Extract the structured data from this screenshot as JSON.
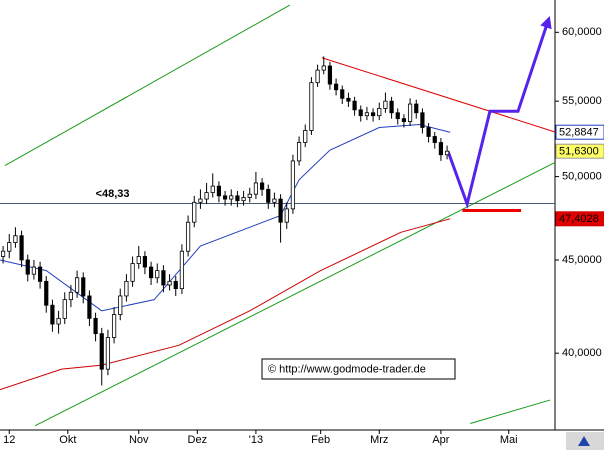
{
  "chart_data": {
    "type": "candlestick",
    "log": true,
    "xlim": [
      0,
      180
    ],
    "ylim": [
      36.3,
      62.5
    ],
    "yticks": [
      {
        "value": 40,
        "label": "40,0000"
      },
      {
        "value": 45,
        "label": "45,0000"
      },
      {
        "value": 50,
        "label": "50,0000"
      },
      {
        "value": 55,
        "label": "55,0000"
      },
      {
        "value": 60,
        "label": "60,0000"
      }
    ],
    "xticks": [
      {
        "value": 3,
        "label": "12"
      },
      {
        "value": 22,
        "label": "Okt"
      },
      {
        "value": 45,
        "label": "Nov"
      },
      {
        "value": 64,
        "label": "Dez"
      },
      {
        "value": 83,
        "label": "'13"
      },
      {
        "value": 104,
        "label": "Feb"
      },
      {
        "value": 123,
        "label": "Mrz"
      },
      {
        "value": 143,
        "label": "Apr"
      },
      {
        "value": 165,
        "label": "Mai"
      }
    ],
    "up_color": "#ffffff",
    "down_color": "#000000",
    "x": [
      1,
      3,
      5,
      7,
      9,
      11,
      13,
      15,
      17,
      19,
      21,
      23,
      25,
      27,
      29,
      31,
      33,
      35,
      37,
      39,
      41,
      43,
      45,
      47,
      49,
      51,
      53,
      55,
      57,
      59,
      61,
      63,
      65,
      67,
      69,
      71,
      73,
      75,
      77,
      79,
      81,
      83,
      85,
      87,
      89,
      91,
      93,
      95,
      97,
      99,
      101,
      103,
      105,
      107,
      109,
      111,
      113,
      115,
      117,
      119,
      121,
      123,
      125,
      127,
      129,
      131,
      133,
      135,
      137,
      139,
      141,
      143,
      145
    ],
    "candles": [
      [
        45.2,
        45.8,
        44.8,
        45.5
      ],
      [
        45.5,
        46.5,
        45.1,
        46.0
      ],
      [
        46.0,
        46.9,
        45.7,
        46.4
      ],
      [
        46.4,
        46.7,
        44.6,
        45.0
      ],
      [
        45.0,
        45.3,
        43.8,
        44.2
      ],
      [
        44.2,
        45.0,
        43.9,
        44.6
      ],
      [
        44.6,
        44.9,
        43.4,
        43.8
      ],
      [
        43.8,
        44.1,
        42.1,
        42.5
      ],
      [
        42.5,
        42.8,
        41.1,
        41.5
      ],
      [
        41.5,
        42.2,
        41.0,
        41.8
      ],
      [
        41.8,
        43.2,
        41.5,
        42.8
      ],
      [
        42.8,
        43.6,
        42.4,
        43.2
      ],
      [
        43.2,
        44.4,
        42.9,
        44.0
      ],
      [
        44.0,
        44.3,
        42.6,
        43.0
      ],
      [
        43.0,
        43.3,
        41.4,
        41.8
      ],
      [
        41.8,
        42.1,
        40.6,
        41.0
      ],
      [
        41.0,
        41.3,
        38.4,
        39.2
      ],
      [
        39.2,
        41.2,
        38.9,
        40.8
      ],
      [
        40.8,
        42.4,
        40.5,
        42.0
      ],
      [
        42.0,
        43.4,
        41.7,
        43.0
      ],
      [
        43.0,
        44.2,
        42.7,
        43.8
      ],
      [
        43.8,
        45.2,
        43.5,
        44.8
      ],
      [
        44.8,
        45.8,
        44.5,
        45.2
      ],
      [
        45.2,
        45.5,
        44.2,
        44.6
      ],
      [
        44.6,
        44.9,
        43.6,
        44.0
      ],
      [
        44.0,
        44.8,
        43.7,
        44.4
      ],
      [
        44.4,
        44.7,
        43.2,
        43.6
      ],
      [
        43.6,
        44.2,
        43.3,
        43.8
      ],
      [
        43.8,
        44.1,
        43.0,
        43.4
      ],
      [
        43.4,
        45.9,
        43.1,
        45.5
      ],
      [
        45.5,
        47.6,
        45.2,
        47.2
      ],
      [
        47.2,
        48.8,
        46.9,
        48.4
      ],
      [
        48.4,
        49.2,
        48.0,
        48.6
      ],
      [
        48.6,
        49.6,
        48.3,
        49.0
      ],
      [
        49.0,
        50.2,
        48.7,
        49.4
      ],
      [
        49.4,
        49.7,
        48.4,
        48.8
      ],
      [
        48.8,
        49.1,
        48.2,
        48.6
      ],
      [
        48.6,
        49.2,
        48.2,
        48.8
      ],
      [
        48.8,
        49.1,
        48.1,
        48.5
      ],
      [
        48.5,
        49.1,
        48.2,
        48.7
      ],
      [
        48.7,
        49.3,
        48.4,
        48.9
      ],
      [
        48.9,
        50.3,
        48.6,
        49.6
      ],
      [
        49.6,
        49.9,
        48.8,
        49.2
      ],
      [
        49.2,
        49.5,
        48.0,
        48.4
      ],
      [
        48.4,
        49.0,
        48.1,
        48.6
      ],
      [
        48.6,
        48.9,
        46.0,
        47.2
      ],
      [
        47.2,
        48.4,
        46.8,
        48.0
      ],
      [
        48.0,
        51.4,
        47.7,
        51.0
      ],
      [
        51.0,
        52.6,
        50.7,
        52.2
      ],
      [
        52.2,
        53.4,
        51.9,
        53.0
      ],
      [
        53.0,
        56.7,
        52.7,
        56.3
      ],
      [
        56.3,
        57.6,
        56.0,
        57.2
      ],
      [
        57.2,
        58.2,
        56.9,
        57.5
      ],
      [
        57.5,
        57.8,
        55.8,
        56.2
      ],
      [
        56.2,
        56.6,
        55.4,
        55.8
      ],
      [
        55.8,
        56.1,
        54.8,
        55.2
      ],
      [
        55.2,
        55.6,
        54.6,
        55.0
      ],
      [
        55.0,
        55.3,
        54.0,
        54.4
      ],
      [
        54.4,
        54.7,
        53.6,
        54.0
      ],
      [
        54.0,
        54.6,
        53.7,
        54.2
      ],
      [
        54.2,
        54.5,
        53.6,
        54.0
      ],
      [
        54.0,
        54.9,
        53.7,
        54.5
      ],
      [
        54.5,
        55.6,
        54.2,
        55.0
      ],
      [
        55.0,
        55.3,
        53.8,
        54.2
      ],
      [
        54.2,
        54.5,
        53.4,
        53.8
      ],
      [
        53.8,
        54.1,
        53.2,
        53.6
      ],
      [
        53.6,
        55.2,
        53.3,
        54.8
      ],
      [
        54.8,
        55.1,
        53.8,
        54.2
      ],
      [
        54.2,
        54.5,
        52.8,
        53.2
      ],
      [
        53.2,
        53.5,
        52.2,
        52.6
      ],
      [
        52.6,
        52.9,
        51.8,
        52.2
      ],
      [
        52.2,
        52.5,
        51.0,
        51.4
      ],
      [
        51.4,
        52.0,
        51.1,
        51.63
      ]
    ],
    "last_label": "51,6300",
    "last_label_bg": "#ffff66",
    "series": [
      {
        "color": "#2040c0",
        "x": [
          0,
          15,
          33,
          50,
          65,
          91,
          97,
          107,
          123,
          136,
          146
        ],
        "values": [
          45.0,
          44.4,
          42.2,
          42.8,
          45.8,
          47.6,
          49.8,
          51.7,
          53.2,
          53.4,
          52.8847
        ],
        "end_label": "52,8847",
        "end_label_bg": "#ffffff"
      },
      {
        "color": "#cc0000",
        "x": [
          0,
          20,
          33,
          58,
          81,
          104,
          130,
          146
        ],
        "values": [
          38.2,
          39.2,
          39.4,
          40.4,
          42.2,
          44.4,
          46.6,
          47.4028
        ],
        "end_label": "47,4028",
        "end_label_bg": "#e00000"
      }
    ],
    "lines": [
      {
        "color": "#1a9a1a",
        "width": 1,
        "x": [
          1.6,
          94
        ],
        "values": [
          50.7,
          62.1
        ]
      },
      {
        "color": "#1a9a1a",
        "width": 1,
        "x": [
          11.4,
          180
        ],
        "values": [
          36.5,
          50.9
        ]
      },
      {
        "color": "#1a9a1a",
        "width": 1,
        "x": [
          152.5,
          178.4
        ],
        "values": [
          36.6,
          37.7
        ]
      },
      {
        "color": "#dd0000",
        "width": 1,
        "x": [
          104.4,
          180
        ],
        "values": [
          58.1,
          52.9
        ]
      },
      {
        "color": "#4a5a7a",
        "width": 1,
        "x": [
          0,
          180
        ],
        "values": [
          48.33,
          48.33
        ]
      },
      {
        "color": "#ee0000",
        "width": 3,
        "x": [
          150,
          169
        ],
        "values": [
          47.9,
          47.9
        ]
      },
      {
        "color": "#5522ee",
        "width": 3,
        "arrow": true,
        "x": [
          145.3,
          151.5,
          158.9,
          168,
          177.8
        ],
        "values": [
          51.63,
          48.3,
          54.3,
          54.3,
          60.9
        ]
      }
    ],
    "annotations": [
      {
        "text": "<48,33",
        "x": 31,
        "y": 48.9,
        "color": "#ee0000"
      }
    ],
    "copyright": "© http://www.godmode-trader.de"
  }
}
